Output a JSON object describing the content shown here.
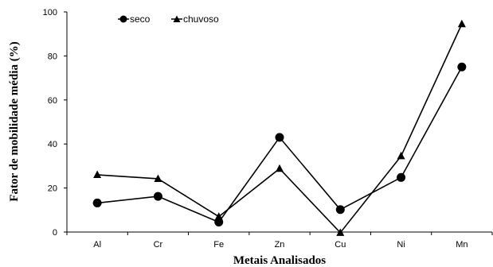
{
  "chart_data": {
    "type": "line",
    "categories": [
      "Al",
      "Cr",
      "Fe",
      "Zn",
      "Cu",
      "Ni",
      "Mn"
    ],
    "series": [
      {
        "name": "seco",
        "marker": "circle",
        "values": [
          13.2,
          16.2,
          4.5,
          43.0,
          10.2,
          24.8,
          75.0
        ]
      },
      {
        "name": "chuvoso",
        "marker": "triangle",
        "values": [
          26.0,
          24.2,
          7.0,
          28.8,
          -0.3,
          34.5,
          94.5
        ]
      }
    ],
    "xlabel": "Metais Analisados",
    "ylabel": "Fator de mobilidade média (%)",
    "ylim": [
      0,
      100
    ],
    "yticks": [
      0,
      20,
      40,
      60,
      80,
      100
    ],
    "grid": false,
    "legend": "top-left"
  }
}
